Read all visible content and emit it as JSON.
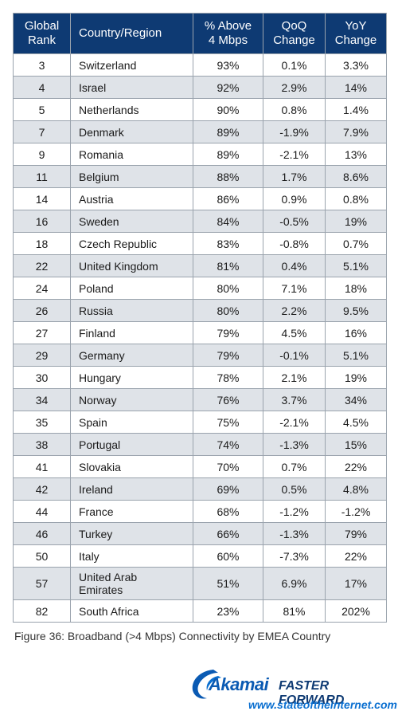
{
  "table": {
    "headers": {
      "rank": [
        "Global",
        "Rank"
      ],
      "country": [
        "Country/Region"
      ],
      "pct": [
        "% Above",
        "4 Mbps"
      ],
      "qoq": [
        "QoQ",
        "Change"
      ],
      "yoy": [
        "YoY",
        "Change"
      ]
    },
    "rows": [
      {
        "rank": "3",
        "country": [
          "Switzerland"
        ],
        "pct": "93%",
        "qoq": "0.1%",
        "yoy": "3.3%"
      },
      {
        "rank": "4",
        "country": [
          "Israel"
        ],
        "pct": "92%",
        "qoq": "2.9%",
        "yoy": "14%"
      },
      {
        "rank": "5",
        "country": [
          "Netherlands"
        ],
        "pct": "90%",
        "qoq": "0.8%",
        "yoy": "1.4%"
      },
      {
        "rank": "7",
        "country": [
          "Denmark"
        ],
        "pct": "89%",
        "qoq": "-1.9%",
        "yoy": "7.9%"
      },
      {
        "rank": "9",
        "country": [
          "Romania"
        ],
        "pct": "89%",
        "qoq": "-2.1%",
        "yoy": "13%"
      },
      {
        "rank": "11",
        "country": [
          "Belgium"
        ],
        "pct": "88%",
        "qoq": "1.7%",
        "yoy": "8.6%"
      },
      {
        "rank": "14",
        "country": [
          "Austria"
        ],
        "pct": "86%",
        "qoq": "0.9%",
        "yoy": "0.8%"
      },
      {
        "rank": "16",
        "country": [
          "Sweden"
        ],
        "pct": "84%",
        "qoq": "-0.5%",
        "yoy": "19%"
      },
      {
        "rank": "18",
        "country": [
          "Czech Republic"
        ],
        "pct": "83%",
        "qoq": "-0.8%",
        "yoy": "0.7%"
      },
      {
        "rank": "22",
        "country": [
          "United Kingdom"
        ],
        "pct": "81%",
        "qoq": "0.4%",
        "yoy": "5.1%"
      },
      {
        "rank": "24",
        "country": [
          "Poland"
        ],
        "pct": "80%",
        "qoq": "7.1%",
        "yoy": "18%"
      },
      {
        "rank": "26",
        "country": [
          "Russia"
        ],
        "pct": "80%",
        "qoq": "2.2%",
        "yoy": "9.5%"
      },
      {
        "rank": "27",
        "country": [
          "Finland"
        ],
        "pct": "79%",
        "qoq": "4.5%",
        "yoy": "16%"
      },
      {
        "rank": "29",
        "country": [
          "Germany"
        ],
        "pct": "79%",
        "qoq": "-0.1%",
        "yoy": "5.1%"
      },
      {
        "rank": "30",
        "country": [
          "Hungary"
        ],
        "pct": "78%",
        "qoq": "2.1%",
        "yoy": "19%"
      },
      {
        "rank": "34",
        "country": [
          "Norway"
        ],
        "pct": "76%",
        "qoq": "3.7%",
        "yoy": "34%"
      },
      {
        "rank": "35",
        "country": [
          "Spain"
        ],
        "pct": "75%",
        "qoq": "-2.1%",
        "yoy": "4.5%"
      },
      {
        "rank": "38",
        "country": [
          "Portugal"
        ],
        "pct": "74%",
        "qoq": "-1.3%",
        "yoy": "15%"
      },
      {
        "rank": "41",
        "country": [
          "Slovakia"
        ],
        "pct": "70%",
        "qoq": "0.7%",
        "yoy": "22%"
      },
      {
        "rank": "42",
        "country": [
          "Ireland"
        ],
        "pct": "69%",
        "qoq": "0.5%",
        "yoy": "4.8%"
      },
      {
        "rank": "44",
        "country": [
          "France"
        ],
        "pct": "68%",
        "qoq": "-1.2%",
        "yoy": "-1.2%"
      },
      {
        "rank": "46",
        "country": [
          "Turkey"
        ],
        "pct": "66%",
        "qoq": "-1.3%",
        "yoy": "79%"
      },
      {
        "rank": "50",
        "country": [
          "Italy"
        ],
        "pct": "60%",
        "qoq": "-7.3%",
        "yoy": "22%"
      },
      {
        "rank": "57",
        "country": [
          "United Arab",
          "Emirates"
        ],
        "pct": "51%",
        "qoq": "6.9%",
        "yoy": "17%"
      },
      {
        "rank": "82",
        "country": [
          "South Africa"
        ],
        "pct": "23%",
        "qoq": "81%",
        "yoy": "202%"
      }
    ]
  },
  "caption": "Figure 36: Broadband (>4 Mbps) Connectivity by EMEA Country",
  "logo": {
    "brand": "Akamai",
    "tagline": "FASTER FORWARD",
    "url": "www.stateoftheinternet.com"
  },
  "colors": {
    "header_bg": "#0e3a73",
    "row_shade": "#dfe3e8",
    "brand_blue": "#0a5ab3"
  }
}
